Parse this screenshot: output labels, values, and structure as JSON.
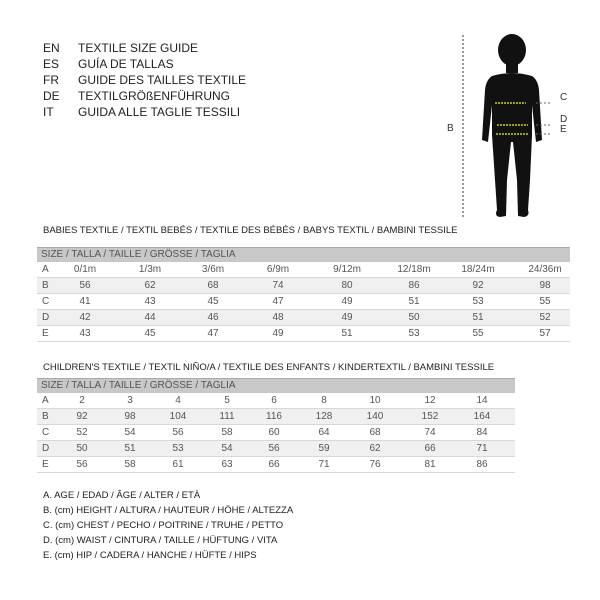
{
  "languages": [
    {
      "code": "EN",
      "title": "TEXTILE SIZE GUIDE"
    },
    {
      "code": "ES",
      "title": "GUÍA DE TALLAS"
    },
    {
      "code": "FR",
      "title": "GUIDE DES TAILLES TEXTILE"
    },
    {
      "code": "DE",
      "title": "TEXTILGRÖßENFÜHRUNG"
    },
    {
      "code": "IT",
      "title": "GUIDA ALLE TAGLIE TESSILI"
    }
  ],
  "figure": {
    "labels": {
      "B": "B",
      "C": "C",
      "D": "D",
      "E": "E"
    },
    "measure_line_color": "#c8d400"
  },
  "babies": {
    "title": "BABIES TEXTILE / TEXTIL BEBÉS / TEXTILE DES BÉBÉS / BABYS TEXTIL  / BAMBINI TESSILE",
    "header": "SIZE / TALLA / TAILLE / GRÖSSE / TAGLIA",
    "rows": [
      {
        "label": "A",
        "values": [
          "0/1m",
          "1/3m",
          "3/6m",
          "6/9m",
          "9/12m",
          "12/18m",
          "18/24m",
          "24/36m"
        ]
      },
      {
        "label": "B",
        "values": [
          "56",
          "62",
          "68",
          "74",
          "80",
          "86",
          "92",
          "98"
        ]
      },
      {
        "label": "C",
        "values": [
          "41",
          "43",
          "45",
          "47",
          "49",
          "51",
          "53",
          "55"
        ]
      },
      {
        "label": "D",
        "values": [
          "42",
          "44",
          "46",
          "48",
          "49",
          "50",
          "51",
          "52"
        ]
      },
      {
        "label": "E",
        "values": [
          "43",
          "45",
          "47",
          "49",
          "51",
          "53",
          "55",
          "57"
        ]
      }
    ]
  },
  "children": {
    "title": "CHILDREN'S TEXTILE / TEXTIL NIÑO/A / TEXTILE DES ENFANTS / KINDERTEXTIL / BAMBINI TESSILE",
    "header": "SIZE / TALLA / TAILLE / GRÖSSE / TAGLIA",
    "rows": [
      {
        "label": "A",
        "values": [
          "2",
          "3",
          "4",
          "5",
          "6",
          "8",
          "10",
          "12",
          "14"
        ]
      },
      {
        "label": "B",
        "values": [
          "92",
          "98",
          "104",
          "111",
          "116",
          "128",
          "140",
          "152",
          "164"
        ]
      },
      {
        "label": "C",
        "values": [
          "52",
          "54",
          "56",
          "58",
          "60",
          "64",
          "68",
          "74",
          "84"
        ]
      },
      {
        "label": "D",
        "values": [
          "50",
          "51",
          "53",
          "54",
          "56",
          "59",
          "62",
          "66",
          "71"
        ]
      },
      {
        "label": "E",
        "values": [
          "56",
          "58",
          "61",
          "63",
          "66",
          "71",
          "76",
          "81",
          "86"
        ]
      }
    ]
  },
  "legend": [
    "A. AGE / EDAD / ÂGE / ALTER / ETÀ",
    "B. (cm) HEIGHT / ALTURA / HAUTEUR / HÖHE / ALTEZZA",
    "C. (cm) CHEST / PECHO / POITRINE / TRUHE / PETTO",
    "D. (cm) WAIST / CINTURA / TAILLE / HÜFTUNG / VITA",
    "E. (cm) HIP / CADERA / HANCHE / HÜFTE / HIPS"
  ]
}
